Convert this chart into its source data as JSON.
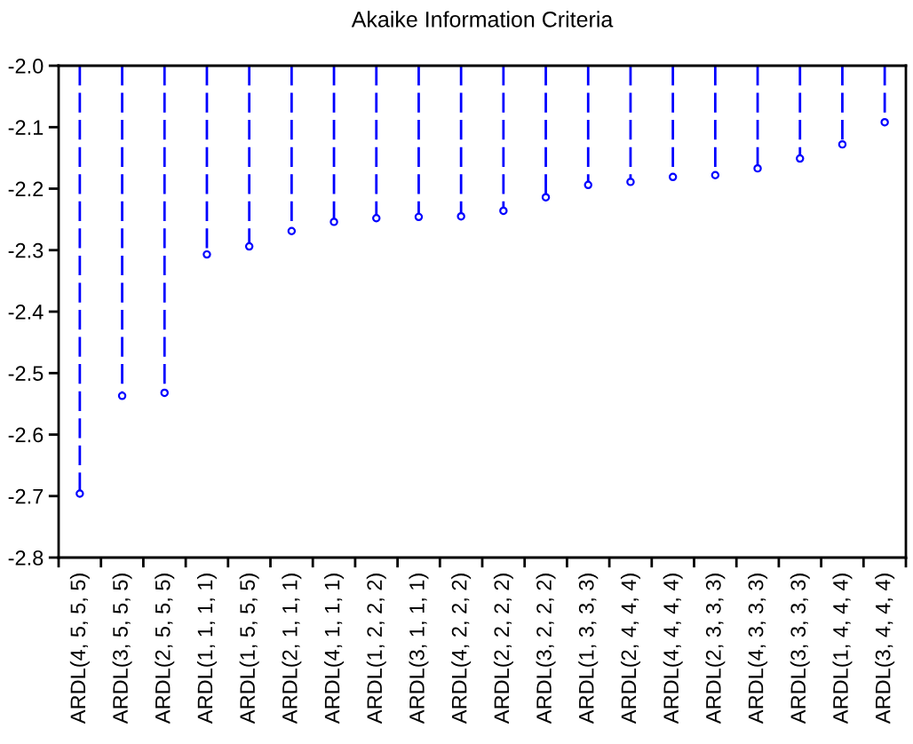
{
  "chart_data": {
    "type": "lollipop",
    "title": "Akaike Information Criteria",
    "categories": [
      "ARDL(4, 5, 5, 5)",
      "ARDL(3, 5, 5, 5)",
      "ARDL(2, 5, 5, 5)",
      "ARDL(1, 1, 1, 1)",
      "ARDL(1, 5, 5, 5)",
      "ARDL(2, 1, 1, 1)",
      "ARDL(4, 1, 1, 1)",
      "ARDL(1, 2, 2, 2)",
      "ARDL(3, 1, 1, 1)",
      "ARDL(4, 2, 2, 2)",
      "ARDL(2, 2, 2, 2)",
      "ARDL(3, 2, 2, 2)",
      "ARDL(1, 3, 3, 3)",
      "ARDL(2, 4, 4, 4)",
      "ARDL(4, 4, 4, 4)",
      "ARDL(2, 3, 3, 3)",
      "ARDL(4, 3, 3, 3)",
      "ARDL(3, 3, 3, 3)",
      "ARDL(1, 4, 4, 4)",
      "ARDL(3, 4, 4, 4)"
    ],
    "values": [
      -2.696,
      -2.537,
      -2.532,
      -2.307,
      -2.294,
      -2.269,
      -2.254,
      -2.248,
      -2.246,
      -2.245,
      -2.236,
      -2.214,
      -2.194,
      -2.189,
      -2.181,
      -2.178,
      -2.167,
      -2.151,
      -2.128,
      -2.092
    ],
    "color": "#0000ff",
    "marker": "circle",
    "line_style": "dashed",
    "ylim": [
      -2.8,
      -2.0
    ],
    "yticks": [
      -2.8,
      -2.7,
      -2.6,
      -2.5,
      -2.4,
      -2.3,
      -2.2,
      -2.1,
      {
        "value": -2,
        "label": "-2.0"
      }
    ]
  }
}
